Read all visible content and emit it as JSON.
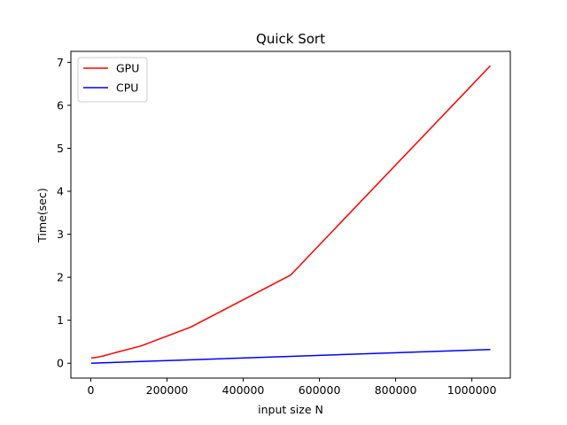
{
  "chart_data": {
    "type": "line",
    "title": "Quick Sort",
    "xlabel": "input size N",
    "ylabel": "Time(sec)",
    "xlim": [
      -52300,
      1100876
    ],
    "ylim": [
      -0.345,
      7.255
    ],
    "x_ticks": [
      0,
      200000,
      400000,
      600000,
      800000,
      1000000
    ],
    "x_tick_labels": [
      "0",
      "200000",
      "400000",
      "600000",
      "800000",
      "1000000"
    ],
    "y_ticks": [
      0,
      1,
      2,
      3,
      4,
      5,
      6,
      7
    ],
    "y_tick_labels": [
      "0",
      "1",
      "2",
      "3",
      "4",
      "5",
      "6",
      "7"
    ],
    "grid": false,
    "legend_position": "top-left",
    "series": [
      {
        "name": "GPU",
        "color": "#ff0000",
        "x": [
          1024,
          16384,
          32768,
          65536,
          131072,
          262144,
          524288,
          1048576
        ],
        "y": [
          0.12,
          0.14,
          0.17,
          0.25,
          0.4,
          0.84,
          2.05,
          6.92
        ]
      },
      {
        "name": "CPU",
        "color": "#0000ff",
        "x": [
          1024,
          16384,
          32768,
          65536,
          131072,
          262144,
          524288,
          1048576
        ],
        "y": [
          0.0,
          0.005,
          0.01,
          0.02,
          0.04,
          0.08,
          0.16,
          0.32
        ]
      }
    ]
  }
}
